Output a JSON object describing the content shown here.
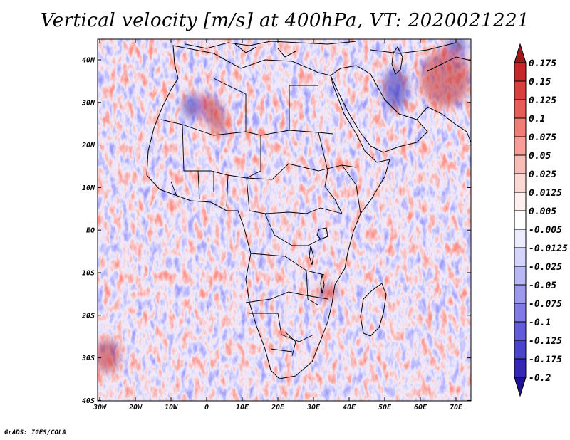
{
  "title": "Vertical velocity [m/s] at 400hPa, VT: 2020021221",
  "footer": "GrADS: IGES/COLA",
  "map": {
    "lat_labels": [
      "40N",
      "30N",
      "20N",
      "10N",
      "EQ",
      "10S",
      "20S",
      "30S",
      "40S"
    ],
    "lon_labels": [
      "30W",
      "20W",
      "10W",
      "0",
      "10E",
      "20E",
      "30E",
      "40E",
      "50E",
      "60E",
      "70E"
    ]
  },
  "colorbar": {
    "labels": [
      "0.175",
      "0.15",
      "0.125",
      "0.1",
      "0.075",
      "0.05",
      "0.025",
      "0.0125",
      "0.005",
      "-0.005",
      "-0.0125",
      "-0.025",
      "-0.05",
      "-0.075",
      "-0.1",
      "-0.125",
      "-0.175",
      "-0.2"
    ],
    "colors": [
      "#a5161a",
      "#c4282b",
      "#d8403e",
      "#e65d58",
      "#ef7e77",
      "#f59f98",
      "#f9bdb7",
      "#fcd8d4",
      "#fef0ee",
      "#ffffff",
      "#ececfd",
      "#d5d4fb",
      "#b9b7f6",
      "#9d99ef",
      "#7f7ae6",
      "#625cda",
      "#4a43cb",
      "#3327b3",
      "#1f1294"
    ]
  },
  "colors": {
    "positive": "#d94a3e",
    "negative": "#6b63e0",
    "border": "#000000"
  }
}
